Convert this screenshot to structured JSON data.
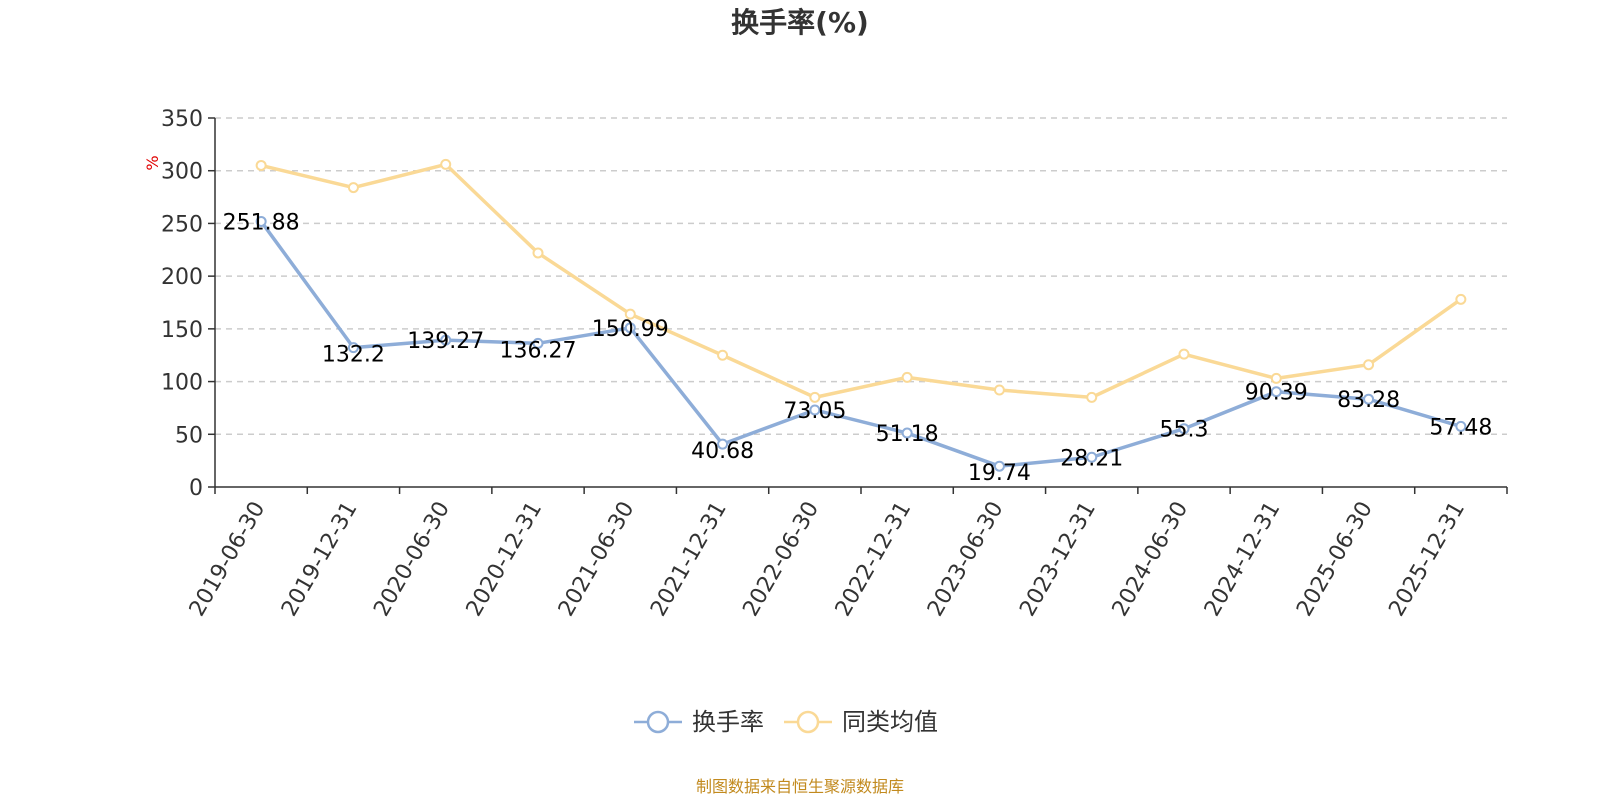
{
  "chart_data": {
    "type": "line",
    "title": "换手率(%)",
    "ylabel": "%",
    "xlabel": "",
    "ylim": [
      0,
      350
    ],
    "yticks": [
      0,
      50,
      100,
      150,
      200,
      250,
      300,
      350
    ],
    "grid": true,
    "legend_position": "bottom",
    "categories": [
      "2019-06-30",
      "2019-12-31",
      "2020-06-30",
      "2020-12-31",
      "2021-06-30",
      "2021-12-31",
      "2022-06-30",
      "2022-12-31",
      "2023-06-30",
      "2023-12-31",
      "2024-06-30",
      "2024-12-31",
      "2025-06-30",
      "2025-12-31"
    ],
    "series": [
      {
        "name": "换手率",
        "color": "#8eadd8",
        "values": [
          251.88,
          132.2,
          139.27,
          136.27,
          150.99,
          40.68,
          73.05,
          51.18,
          19.74,
          28.21,
          55.3,
          90.39,
          83.28,
          57.48
        ],
        "labels": [
          "251.88",
          "132.2",
          "139.27",
          "136.27",
          "150.99",
          "40.68",
          "73.05",
          "51.18",
          "19.74",
          "28.21",
          "55.3",
          "90.39",
          "83.28",
          "57.48"
        ]
      },
      {
        "name": "同类均值",
        "color": "#fad996",
        "values": [
          305,
          284,
          306,
          222,
          164,
          125,
          85,
          104,
          92,
          85,
          126,
          103,
          116,
          178
        ]
      }
    ]
  },
  "source": "制图数据来自恒生聚源数据库"
}
